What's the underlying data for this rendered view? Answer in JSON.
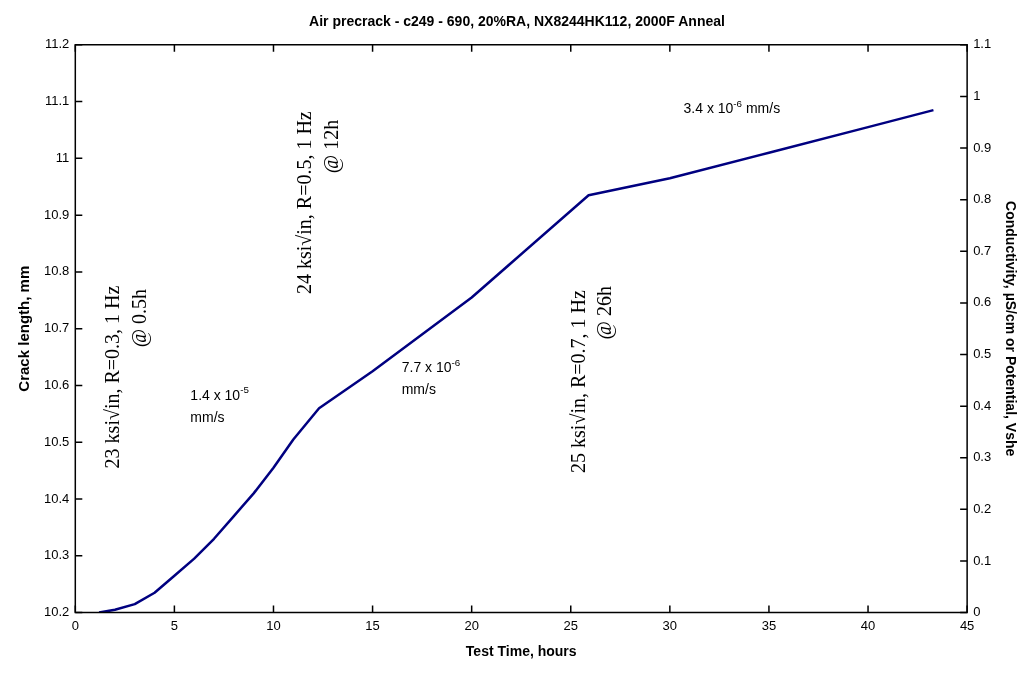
{
  "chart_data": {
    "type": "line",
    "title": "Air precrack - c249 - 690, 20%RA, NX8244HK112, 2000F Anneal",
    "xlabel": "Test Time, hours",
    "ylabel": "Crack length, mm",
    "y2label": "Conductivity, µS/cm or Potential, Vshe",
    "x": [
      1.2,
      2,
      3,
      4,
      5,
      6,
      7,
      8,
      9,
      10,
      11,
      12.3,
      15,
      20,
      25.9,
      30,
      35,
      40,
      43.3
    ],
    "values": [
      10.2,
      10.205,
      10.215,
      10.235,
      10.265,
      10.295,
      10.33,
      10.37,
      10.41,
      10.455,
      10.505,
      10.56,
      10.625,
      10.755,
      10.935,
      10.965,
      11.01,
      11.055,
      11.085
    ],
    "color": "#000080",
    "xlim": [
      0,
      45
    ],
    "xticks": [
      0,
      5,
      10,
      15,
      20,
      25,
      30,
      35,
      40,
      45
    ],
    "ylim": [
      10.2,
      11.2
    ],
    "yticks": [
      10.2,
      10.3,
      10.4,
      10.5,
      10.6,
      10.7,
      10.8,
      10.9,
      11,
      11.1,
      11.2
    ],
    "y2lim": [
      0,
      1.1
    ],
    "y2ticks": [
      0,
      0.1,
      0.2,
      0.3,
      0.4,
      0.5,
      0.6,
      0.7,
      0.8,
      0.9,
      1,
      1.1
    ],
    "annotations": [
      "23 ksi√in, R=0.3, 1 Hz",
      "@ 0.5h",
      "1.4 x 10$^{-5}$",
      "mm/s",
      "24 ksi√in, R=0.5, 1 Hz",
      "@ 12h",
      "7.7 x 10$^{-6}$",
      "mm/s",
      "25 ksi√in, R=0.7, 1 Hz",
      "@ 26h",
      "3.4 x 10$^{-6}$ mm/s"
    ]
  }
}
